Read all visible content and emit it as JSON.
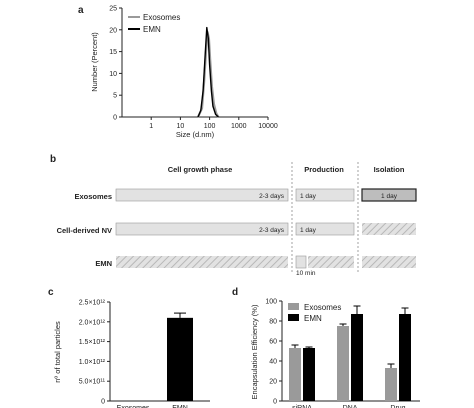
{
  "panels": {
    "a": {
      "letter": "a",
      "chart_data": {
        "type": "line",
        "xlabel": "Size (d.nm)",
        "ylabel": "Number (Percent)",
        "x_scale": "log",
        "xlim": [
          0.1,
          10000
        ],
        "ylim": [
          0,
          25
        ],
        "x_ticks": [
          "1",
          "10",
          "100",
          "1000",
          "10000"
        ],
        "y_ticks": [
          "0",
          "5",
          "10",
          "15",
          "20",
          "25"
        ],
        "legend": "top-left",
        "series": [
          {
            "name": "Exosomes",
            "color": "#9a9a9a",
            "x": [
              40,
              55,
              65,
              75,
              85,
              95,
              105,
              120,
              140,
              170,
              200
            ],
            "y": [
              0,
              2,
              8,
              15,
              19.5,
              18,
              13,
              7,
              3,
              0.8,
              0
            ]
          },
          {
            "name": "EMN",
            "color": "#000000",
            "x": [
              40,
              50,
              60,
              70,
              80,
              90,
              100,
              115,
              130,
              160,
              200
            ],
            "y": [
              0,
              1.5,
              6,
              14,
              20.5,
              18,
              12,
              6,
              2.5,
              0.6,
              0
            ]
          }
        ]
      }
    },
    "b": {
      "letter": "b",
      "phases": [
        "Cell growth phase",
        "Production",
        "Isolation"
      ],
      "rows": [
        {
          "label": "Exosomes",
          "growth": "2-3 days",
          "production": "1 day",
          "isolation": "1 day"
        },
        {
          "label": "Cell-derived NV",
          "growth": "2-3 days",
          "production": "1 day",
          "isolation": ""
        },
        {
          "label": "EMN",
          "growth": "",
          "production": "10 min",
          "isolation": ""
        }
      ]
    },
    "c": {
      "letter": "c",
      "chart_data": {
        "type": "bar",
        "ylabel": "nº of total particles",
        "categories": [
          "Exosomes",
          "EMN"
        ],
        "values": [
          0,
          2100000000000.0
        ],
        "errors": [
          0,
          120000000000.0
        ],
        "ylim": [
          0,
          2500000000000.0
        ],
        "y_ticks": [
          "0",
          "5.0×10¹¹",
          "1.0×10¹²",
          "1.5×10¹²",
          "2.0×10¹²",
          "2.5×10¹²"
        ],
        "colors": [
          "#9a9a9a",
          "#000000"
        ]
      }
    },
    "d": {
      "letter": "d",
      "chart_data": {
        "type": "bar",
        "ylabel": "Encapsulation Efficiency (%)",
        "categories": [
          "siRNA",
          "DNA",
          "Drug"
        ],
        "ylim": [
          0,
          100
        ],
        "y_ticks": [
          "0",
          "20",
          "40",
          "60",
          "80",
          "100"
        ],
        "legend": "top-left",
        "series": [
          {
            "name": "Exosomes",
            "color": "#9a9a9a",
            "values": [
              53,
              75,
              33
            ],
            "errors": [
              3,
              2,
              4
            ]
          },
          {
            "name": "EMN",
            "color": "#000000",
            "values": [
              53,
              87,
              87
            ],
            "errors": [
              1,
              8,
              6
            ]
          }
        ]
      }
    }
  }
}
